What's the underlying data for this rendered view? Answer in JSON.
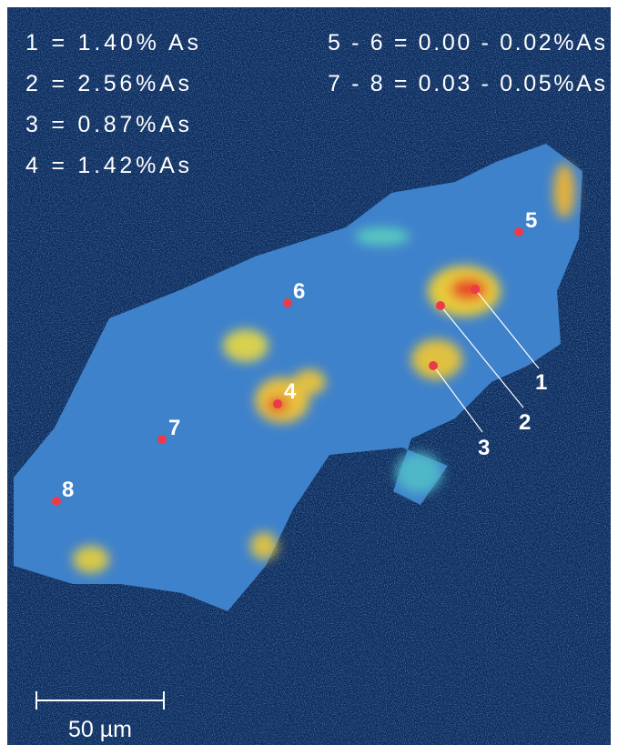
{
  "legend": {
    "left": [
      "1 = 1.40% As",
      "2 = 2.56%As",
      "3 = 0.87%As",
      "4 = 1.42%As"
    ],
    "right": [
      "5 - 6 = 0.00 - 0.02%As",
      "7 - 8 = 0.03 - 0.05%As"
    ]
  },
  "points": [
    {
      "label": "1"
    },
    {
      "label": "2"
    },
    {
      "label": "3"
    },
    {
      "label": "4"
    },
    {
      "label": "5"
    },
    {
      "label": "6"
    },
    {
      "label": "7"
    },
    {
      "label": "8"
    }
  ],
  "scale_bar": {
    "label": "50 µm"
  }
}
